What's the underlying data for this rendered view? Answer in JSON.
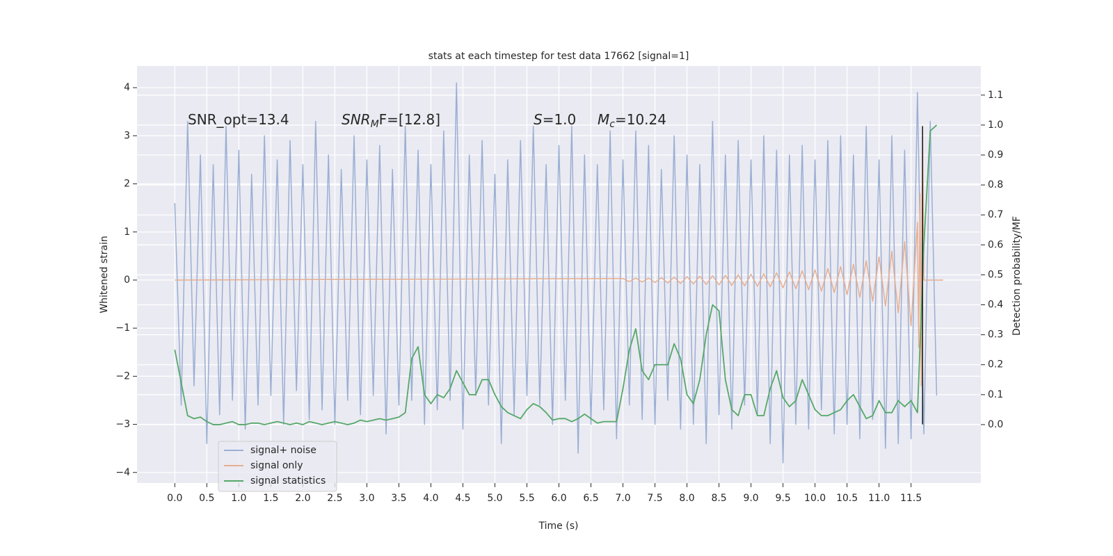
{
  "chart_data": {
    "type": "line",
    "title": "stats at each timestep for test data 17662 [signal=1]",
    "xlabel": "Time (s)",
    "ylabel": "Whitened strain",
    "y2label": "Detection probability/MF",
    "xlim": [
      -0.59,
      12.59
    ],
    "ylim": [
      -4.22,
      4.45
    ],
    "y2lim": [
      -0.195,
      1.197
    ],
    "xticks": [
      {
        "value": 0,
        "label": "0.0"
      },
      0.5,
      {
        "value": 1,
        "label": "1.0"
      },
      1.5,
      {
        "value": 2,
        "label": "2.0"
      },
      2.5,
      {
        "value": 3,
        "label": "3.0"
      },
      3.5,
      {
        "value": 4,
        "label": "4.0"
      },
      4.5,
      {
        "value": 5,
        "label": "5.0"
      },
      5.5,
      {
        "value": 6,
        "label": "6.0"
      },
      6.5,
      {
        "value": 7,
        "label": "7.0"
      },
      7.5,
      {
        "value": 8,
        "label": "8.0"
      },
      8.5,
      {
        "value": 9,
        "label": "9.0"
      },
      9.5,
      {
        "value": 10,
        "label": "10.0"
      },
      10.5,
      {
        "value": 11,
        "label": "11.0"
      },
      11.5
    ],
    "yticks": [
      {
        "value": -4,
        "label": "−4"
      },
      {
        "value": -3,
        "label": "−3"
      },
      {
        "value": -2,
        "label": "−2"
      },
      {
        "value": -1,
        "label": "−1"
      },
      0,
      1,
      2,
      3,
      4
    ],
    "y2ticks": [
      {
        "value": 0,
        "label": "0.0"
      },
      0.1,
      0.2,
      0.3,
      0.4,
      0.5,
      0.6,
      0.7,
      0.8,
      0.9,
      {
        "value": 1,
        "label": "1.0"
      },
      1.1
    ],
    "grid": true,
    "legend": "lower left",
    "annotations": [
      [
        {
          "text": "SNR_opt=13.4"
        }
      ],
      [
        {
          "text": "SNR",
          "italic": true
        },
        {
          "text": "M",
          "italic": true,
          "sub": true
        },
        {
          "text": "F=[12.8]"
        }
      ],
      [
        {
          "text": "S",
          "italic": true
        },
        {
          "text": "=1.0"
        }
      ],
      [
        {
          "text": "M",
          "italic": true
        },
        {
          "text": "c",
          "italic": true,
          "sub": true
        },
        {
          "text": "=10.24"
        }
      ]
    ],
    "vline": {
      "x": 11.68,
      "ymin": -3.0,
      "ymax": 3.2,
      "color": "#1a1a1a"
    },
    "series": [
      {
        "name": "signal+ noise",
        "color": "#9aafd3",
        "axis": "y",
        "x": [
          0,
          0.1,
          0.2,
          0.3,
          0.4,
          0.5,
          0.6,
          0.7,
          0.8,
          0.9,
          1,
          1.1,
          1.2,
          1.3,
          1.4,
          1.5,
          1.6,
          1.7,
          1.8,
          1.9,
          2,
          2.1,
          2.2,
          2.3,
          2.4,
          2.5,
          2.6,
          2.7,
          2.8,
          2.9,
          3,
          3.1,
          3.2,
          3.3,
          3.4,
          3.5,
          3.6,
          3.7,
          3.8,
          3.9,
          4,
          4.1,
          4.2,
          4.3,
          4.4,
          4.5,
          4.6,
          4.7,
          4.8,
          4.9,
          5,
          5.1,
          5.2,
          5.3,
          5.4,
          5.5,
          5.6,
          5.7,
          5.8,
          5.9,
          6,
          6.1,
          6.2,
          6.3,
          6.4,
          6.5,
          6.6,
          6.7,
          6.8,
          6.9,
          7,
          7.1,
          7.2,
          7.3,
          7.4,
          7.5,
          7.6,
          7.7,
          7.8,
          7.9,
          8,
          8.1,
          8.2,
          8.3,
          8.4,
          8.5,
          8.6,
          8.7,
          8.8,
          8.9,
          9,
          9.1,
          9.2,
          9.3,
          9.4,
          9.5,
          9.6,
          9.7,
          9.8,
          9.9,
          10,
          10.1,
          10.2,
          10.3,
          10.4,
          10.5,
          10.6,
          10.7,
          10.8,
          10.9,
          11,
          11.1,
          11.2,
          11.3,
          11.4,
          11.5,
          11.6,
          11.7,
          11.8,
          11.9
        ],
        "values": [
          1.6,
          -2.6,
          3.3,
          -2.2,
          2.6,
          -3.4,
          2.4,
          -2.8,
          3.2,
          -2.5,
          2.7,
          -3.1,
          2.2,
          -2.6,
          3.0,
          -2.4,
          2.5,
          -3.0,
          2.9,
          -2.3,
          2.4,
          -2.9,
          3.3,
          -2.7,
          2.6,
          -3.0,
          2.3,
          -2.5,
          3.0,
          -2.8,
          2.5,
          -2.4,
          2.8,
          -3.2,
          2.3,
          -2.6,
          3.2,
          -2.5,
          2.7,
          -3.0,
          2.4,
          -2.7,
          3.1,
          -2.5,
          4.1,
          -3.1,
          2.6,
          -2.4,
          2.9,
          -2.6,
          2.2,
          -3.4,
          2.5,
          -2.8,
          2.9,
          -2.4,
          3.2,
          -2.6,
          2.4,
          -3.0,
          2.8,
          -2.5,
          3.2,
          -3.6,
          2.6,
          -3.0,
          2.4,
          -2.7,
          3.1,
          -3.3,
          2.5,
          -2.6,
          3.1,
          -2.9,
          2.8,
          -3.0,
          2.3,
          -2.5,
          3.0,
          -3.1,
          2.6,
          -3.0,
          2.4,
          -3.4,
          3.3,
          -2.8,
          2.6,
          -3.1,
          2.9,
          -2.6,
          2.5,
          -2.8,
          3.0,
          -3.4,
          2.7,
          -3.8,
          2.6,
          -3.0,
          2.8,
          -3.1,
          2.5,
          -2.7,
          2.9,
          -3.2,
          3.0,
          -3.0,
          2.6,
          -3.3,
          3.2,
          -2.9,
          2.5,
          -3.5,
          3.0,
          -3.4,
          2.7,
          -3.3,
          3.9,
          -3.2,
          3.3,
          -2.4
        ]
      },
      {
        "name": "signal only",
        "color": "#e6ae90",
        "axis": "y",
        "x": [
          0,
          7,
          7.1,
          7.2,
          7.3,
          7.4,
          7.5,
          7.6,
          7.7,
          7.8,
          7.9,
          8,
          8.1,
          8.2,
          8.3,
          8.4,
          8.5,
          8.6,
          8.7,
          8.8,
          8.9,
          9,
          9.1,
          9.2,
          9.3,
          9.4,
          9.5,
          9.6,
          9.7,
          9.8,
          9.9,
          10,
          10.1,
          10.2,
          10.3,
          10.4,
          10.5,
          10.6,
          10.7,
          10.8,
          10.9,
          11,
          11.1,
          11.2,
          11.3,
          11.4,
          11.5,
          11.6,
          11.62,
          11.64,
          11.66,
          11.68,
          11.7,
          12
        ],
        "values": [
          0,
          0.03,
          -0.03,
          0.04,
          -0.04,
          0.04,
          -0.05,
          0.05,
          -0.06,
          0.06,
          -0.07,
          0.07,
          -0.08,
          0.08,
          -0.09,
          0.09,
          -0.1,
          0.1,
          -0.11,
          0.11,
          -0.12,
          0.12,
          -0.13,
          0.13,
          -0.14,
          0.15,
          -0.16,
          0.17,
          -0.18,
          0.19,
          -0.2,
          0.21,
          -0.23,
          0.24,
          -0.26,
          0.28,
          -0.3,
          0.33,
          -0.36,
          0.4,
          -0.44,
          0.48,
          -0.54,
          0.6,
          -0.68,
          0.8,
          -0.95,
          1.2,
          -1.4,
          1.8,
          -2.2,
          3.2,
          0,
          0
        ]
      },
      {
        "name": "signal statistics",
        "color": "#55a868",
        "axis": "y2",
        "x": [
          0,
          0.1,
          0.2,
          0.3,
          0.4,
          0.5,
          0.6,
          0.7,
          0.8,
          0.9,
          1,
          1.1,
          1.2,
          1.3,
          1.4,
          1.5,
          1.6,
          1.7,
          1.8,
          1.9,
          2,
          2.1,
          2.2,
          2.3,
          2.4,
          2.5,
          2.6,
          2.7,
          2.8,
          2.9,
          3,
          3.1,
          3.2,
          3.3,
          3.4,
          3.5,
          3.6,
          3.7,
          3.8,
          3.9,
          4,
          4.1,
          4.2,
          4.3,
          4.4,
          4.5,
          4.6,
          4.7,
          4.8,
          4.9,
          5,
          5.1,
          5.2,
          5.3,
          5.4,
          5.5,
          5.6,
          5.7,
          5.8,
          5.9,
          6,
          6.1,
          6.2,
          6.3,
          6.4,
          6.5,
          6.6,
          6.7,
          6.8,
          6.9,
          7,
          7.1,
          7.2,
          7.3,
          7.4,
          7.5,
          7.6,
          7.7,
          7.8,
          7.9,
          8,
          8.1,
          8.2,
          8.3,
          8.4,
          8.5,
          8.6,
          8.7,
          8.8,
          8.9,
          9,
          9.1,
          9.2,
          9.3,
          9.4,
          9.5,
          9.6,
          9.7,
          9.8,
          9.9,
          10,
          10.1,
          10.2,
          10.3,
          10.4,
          10.5,
          10.6,
          10.7,
          10.8,
          10.9,
          11,
          11.1,
          11.2,
          11.3,
          11.4,
          11.5,
          11.6,
          11.7,
          11.8,
          11.9
        ],
        "values": [
          0.25,
          0.14,
          0.03,
          0.02,
          0.025,
          0.01,
          0.0,
          0.0,
          0.005,
          0.01,
          0.0,
          0.0,
          0.005,
          0.005,
          0.0,
          0.005,
          0.01,
          0.005,
          0.0,
          0.005,
          0.0,
          0.01,
          0.005,
          0.0,
          0.005,
          0.01,
          0.005,
          0.0,
          0.005,
          0.015,
          0.01,
          0.015,
          0.02,
          0.015,
          0.02,
          0.025,
          0.04,
          0.22,
          0.26,
          0.1,
          0.07,
          0.1,
          0.09,
          0.12,
          0.18,
          0.14,
          0.1,
          0.1,
          0.15,
          0.15,
          0.1,
          0.06,
          0.04,
          0.03,
          0.02,
          0.05,
          0.07,
          0.06,
          0.04,
          0.015,
          0.02,
          0.02,
          0.01,
          0.02,
          0.035,
          0.02,
          0.005,
          0.01,
          0.01,
          0.01,
          0.12,
          0.25,
          0.32,
          0.18,
          0.15,
          0.2,
          0.2,
          0.2,
          0.27,
          0.22,
          0.1,
          0.07,
          0.15,
          0.3,
          0.4,
          0.38,
          0.15,
          0.05,
          0.03,
          0.1,
          0.1,
          0.03,
          0.03,
          0.12,
          0.18,
          0.09,
          0.06,
          0.08,
          0.15,
          0.1,
          0.05,
          0.03,
          0.03,
          0.04,
          0.05,
          0.08,
          0.1,
          0.06,
          0.02,
          0.03,
          0.08,
          0.04,
          0.04,
          0.08,
          0.06,
          0.08,
          0.04,
          0.6,
          0.98,
          1.0
        ]
      }
    ]
  }
}
